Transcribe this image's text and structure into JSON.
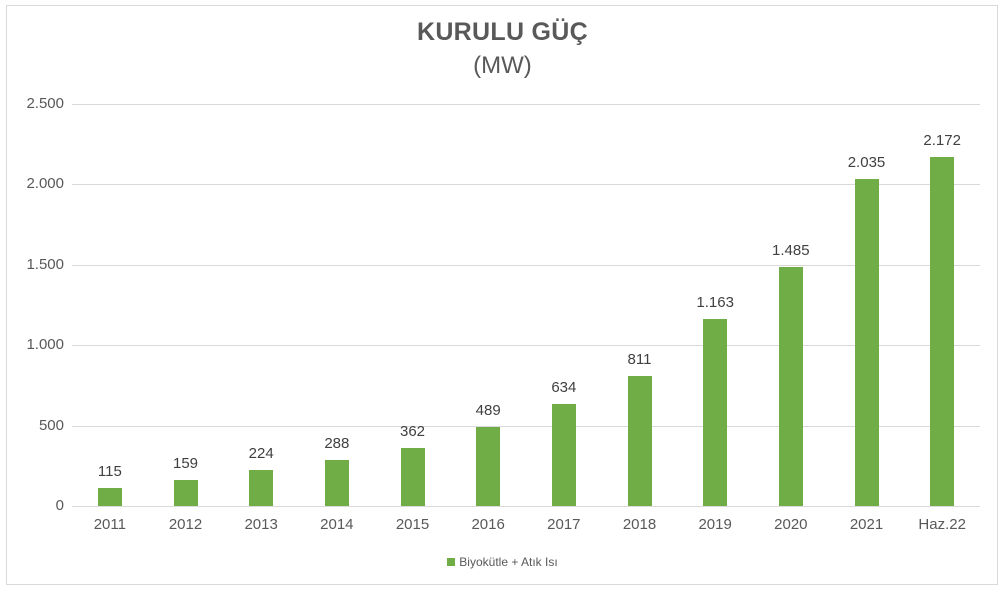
{
  "chart_data": {
    "type": "bar",
    "title": "KURULU GÜÇ",
    "subtitle": "(MW)",
    "xlabel": "",
    "ylabel": "",
    "categories": [
      "2011",
      "2012",
      "2013",
      "2014",
      "2015",
      "2016",
      "2017",
      "2018",
      "2019",
      "2020",
      "2021",
      "Haz.22"
    ],
    "series": [
      {
        "name": "Biyokütle + Atık Isı",
        "color": "#70ad47",
        "values": [
          115,
          159,
          224,
          288,
          362,
          489,
          634,
          811,
          1163,
          1485,
          2035,
          2172
        ],
        "labels": [
          "115",
          "159",
          "224",
          "288",
          "362",
          "489",
          "634",
          "811",
          "1.163",
          "1.485",
          "2.035",
          "2.172"
        ]
      }
    ],
    "ylim": [
      0,
      2500
    ],
    "yticks": [
      0,
      500,
      1000,
      1500,
      2000,
      2500
    ],
    "ytick_labels": [
      "0",
      "500",
      "1.000",
      "1.500",
      "2.000",
      "2.500"
    ],
    "grid": true,
    "legend_position": "bottom"
  },
  "legend": {
    "label": "Biyokütle + Atık Isı"
  }
}
